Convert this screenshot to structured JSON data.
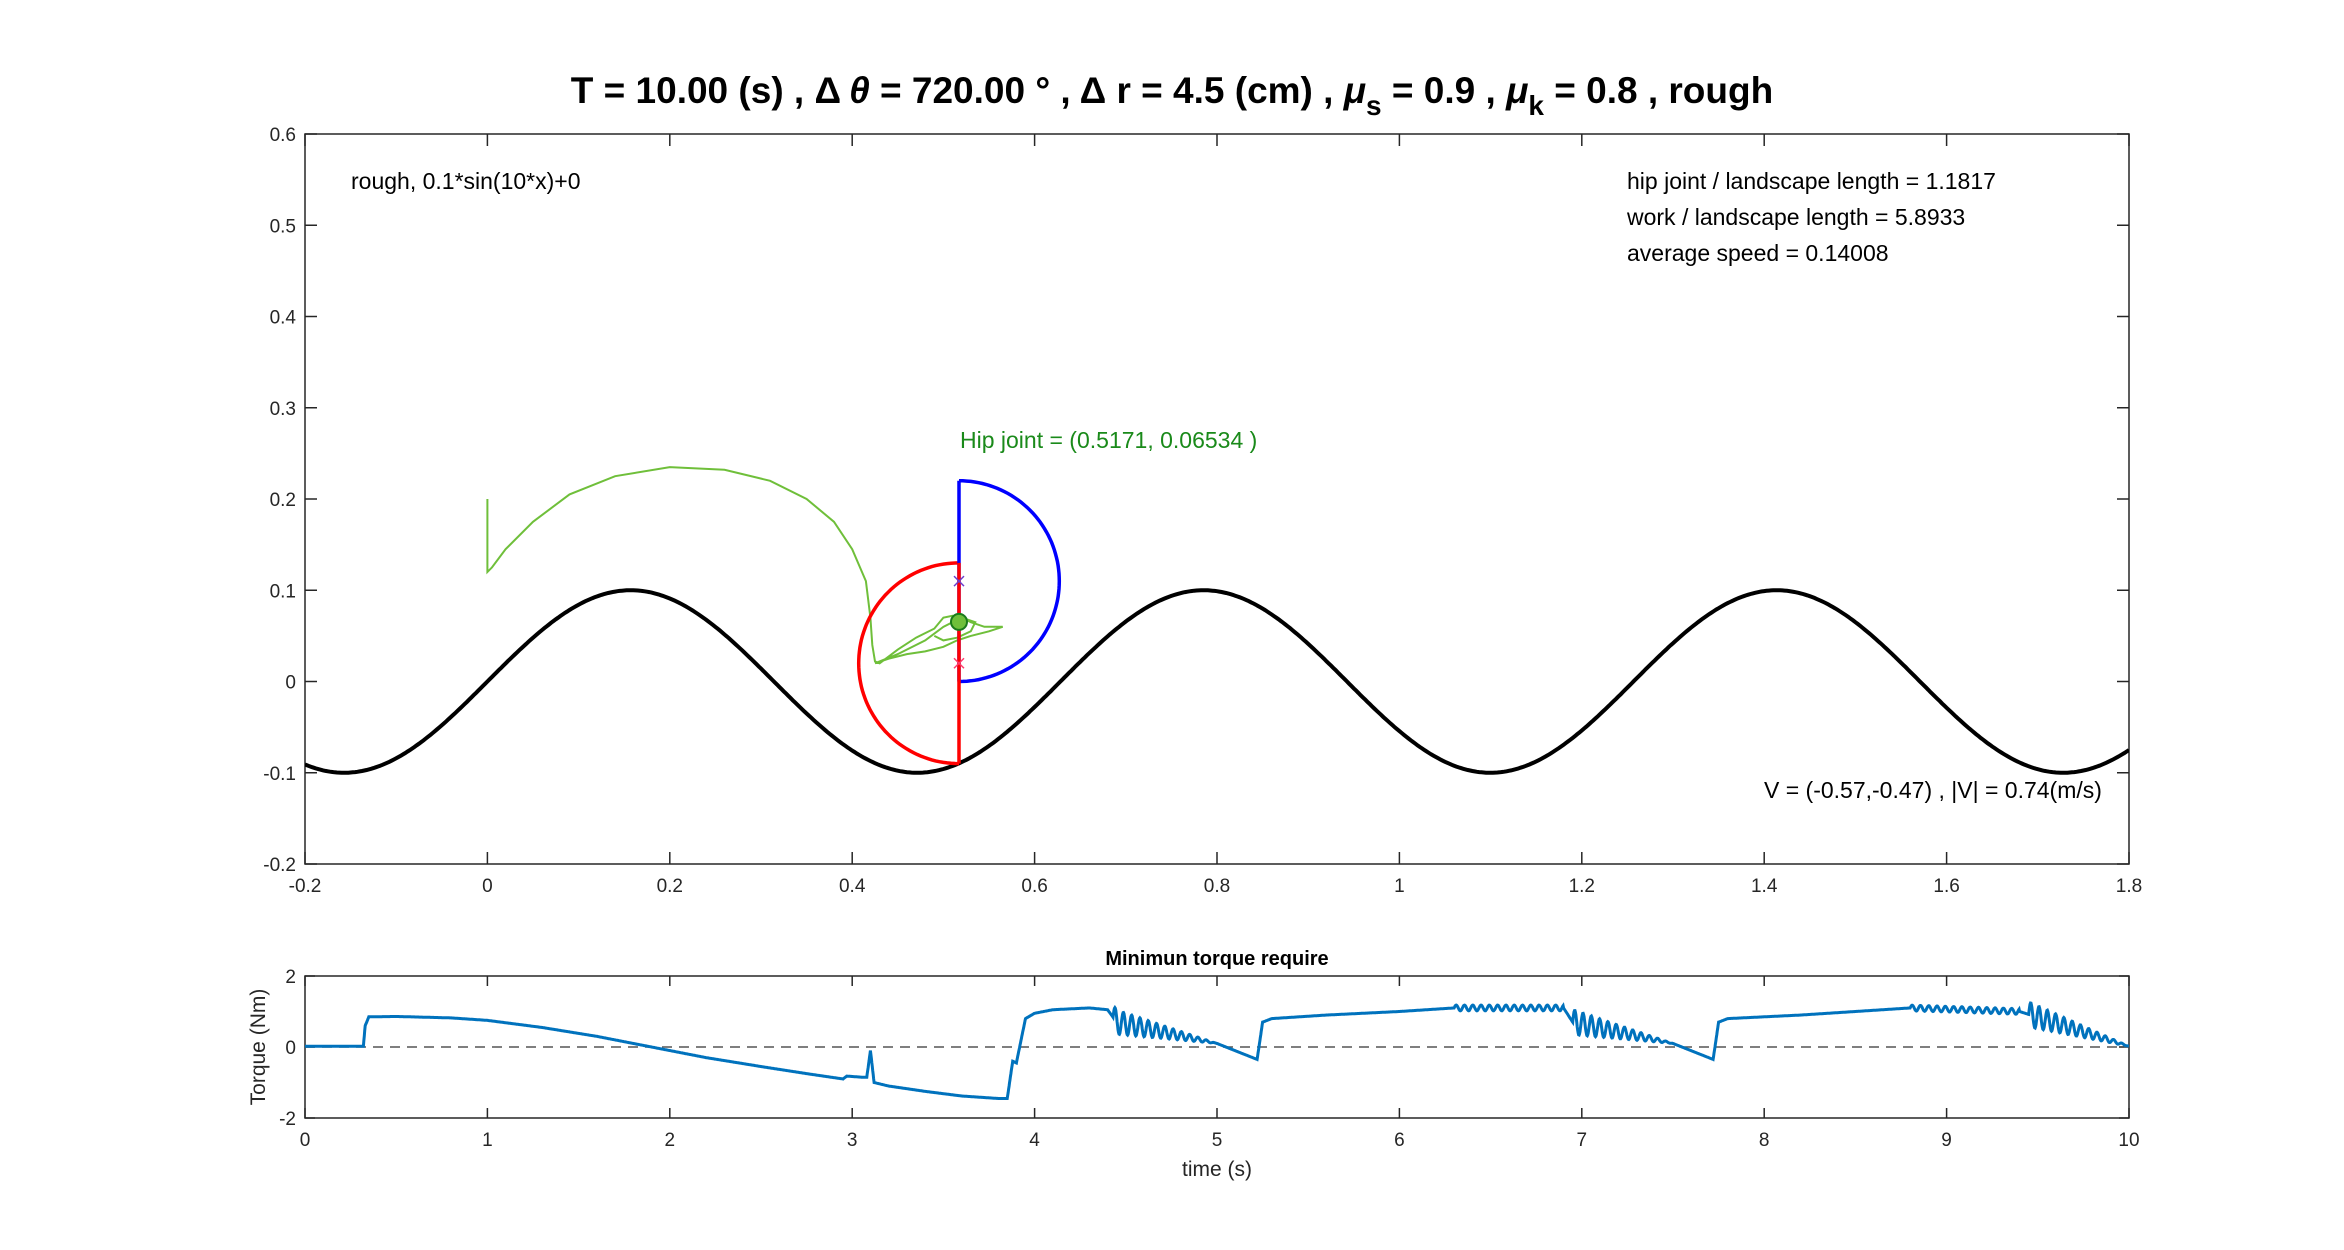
{
  "figure": {
    "title_parts": {
      "t": "T = 10.00 (s) , ",
      "delta1": "Δ",
      "theta": "θ",
      "angle": " = 720.00 ° , ",
      "delta2": "Δ",
      "r": " r = 4.5 (cm) , ",
      "mu1": "μ",
      "s": "s",
      "mus_val": " = 0.9 , ",
      "mu2": "μ",
      "k": "k",
      "muk_val": " = 0.8 , rough"
    }
  },
  "chart_data": [
    {
      "type": "line",
      "panel": "main",
      "xlim": [
        -0.2,
        1.8
      ],
      "ylim": [
        -0.2,
        0.6
      ],
      "xticks": [
        "-0.2",
        "0",
        "0.2",
        "0.4",
        "0.6",
        "0.8",
        "1",
        "1.2",
        "1.4",
        "1.6",
        "1.8"
      ],
      "yticks": [
        "-0.2",
        "-0.1",
        "0",
        "0.1",
        "0.2",
        "0.3",
        "0.4",
        "0.5",
        "0.6"
      ],
      "grid": false,
      "terrain": {
        "amplitude": 0.1,
        "frequency": 10,
        "offset": 0,
        "color": "#000000"
      },
      "annotations": {
        "terrain_label": "rough, 0.1*sin(10*x)+0",
        "hip_ratio": "hip joint / landscape length  = 1.1817",
        "work_ratio": "work / landscape length = 5.8933",
        "avg_speed": "average speed = 0.14008",
        "hip_joint": "Hip joint = (0.5171, 0.06534 )",
        "velocity": "V = (-0.57,-0.47) , |V| = 0.74(m/s)"
      },
      "hip_joint": {
        "x": 0.5171,
        "y": 0.06534
      },
      "blue_leg": {
        "center": [
          0.5171,
          0.11
        ],
        "radius": 0.11,
        "color": "#0000ff"
      },
      "red_leg": {
        "center": [
          0.5171,
          0.02
        ],
        "radius": 0.11,
        "color": "#ff0000"
      },
      "trajectory": {
        "color": "#6fbf3a",
        "x": [
          0.0,
          0.0,
          0.0,
          0.005,
          0.02,
          0.05,
          0.09,
          0.14,
          0.2,
          0.26,
          0.31,
          0.35,
          0.38,
          0.4,
          0.415,
          0.42,
          0.422,
          0.425,
          0.43,
          0.45,
          0.47,
          0.49,
          0.5,
          0.51,
          0.52,
          0.53,
          0.545,
          0.565,
          0.55,
          0.53,
          0.515,
          0.5,
          0.48,
          0.46,
          0.44,
          0.425,
          0.45,
          0.48,
          0.5,
          0.52,
          0.535,
          0.53,
          0.515,
          0.5,
          0.49
        ],
        "y": [
          0.2,
          0.16,
          0.12,
          0.125,
          0.145,
          0.175,
          0.205,
          0.225,
          0.235,
          0.232,
          0.22,
          0.2,
          0.175,
          0.145,
          0.11,
          0.07,
          0.04,
          0.022,
          0.02,
          0.035,
          0.048,
          0.058,
          0.07,
          0.072,
          0.07,
          0.065,
          0.06,
          0.06,
          0.055,
          0.05,
          0.045,
          0.038,
          0.033,
          0.03,
          0.025,
          0.02,
          0.03,
          0.045,
          0.06,
          0.07,
          0.065,
          0.055,
          0.048,
          0.045,
          0.05
        ]
      }
    },
    {
      "type": "line",
      "panel": "torque",
      "title": "Minimun torque require",
      "xlabel": "time (s)",
      "ylabel": "Torque (Nm)",
      "xlim": [
        0,
        10
      ],
      "ylim": [
        -2,
        2
      ],
      "xticks": [
        "0",
        "1",
        "2",
        "3",
        "4",
        "5",
        "6",
        "7",
        "8",
        "9",
        "10"
      ],
      "yticks": [
        "-2",
        "0",
        "2"
      ],
      "grid": false,
      "zero_line": {
        "style": "dashed",
        "color": "#555555"
      },
      "series": [
        {
          "color": "#0072bd",
          "x": [
            0,
            0.32,
            0.33,
            0.35,
            0.5,
            0.8,
            1.0,
            1.3,
            1.6,
            1.9,
            2.2,
            2.5,
            2.75,
            2.95,
            2.97,
            3.05,
            3.08,
            3.1,
            3.12,
            3.2,
            3.4,
            3.6,
            3.8,
            3.85,
            3.88,
            3.9,
            3.93,
            3.95,
            4.0,
            4.1,
            4.3,
            4.4,
            4.45,
            5.0,
            5.22,
            5.25,
            5.3,
            5.6,
            6.0,
            6.3,
            6.9,
            6.95,
            7.5,
            7.72,
            7.75,
            7.8,
            8.2,
            8.8,
            9.4,
            10.0
          ],
          "y": [
            0.02,
            0.02,
            0.6,
            0.85,
            0.86,
            0.82,
            0.75,
            0.55,
            0.3,
            0.0,
            -0.3,
            -0.55,
            -0.75,
            -0.9,
            -0.82,
            -0.85,
            -0.85,
            -0.1,
            -1.0,
            -1.1,
            -1.25,
            -1.38,
            -1.45,
            -1.45,
            -0.4,
            -0.45,
            0.3,
            0.8,
            0.95,
            1.05,
            1.1,
            1.05,
            0.7,
            0.1,
            -0.35,
            0.7,
            0.8,
            0.9,
            1.0,
            1.1,
            1.1,
            0.7,
            0.1,
            -0.35,
            0.7,
            0.8,
            0.9,
            1.1,
            1.0,
            0.02
          ]
        }
      ]
    }
  ]
}
